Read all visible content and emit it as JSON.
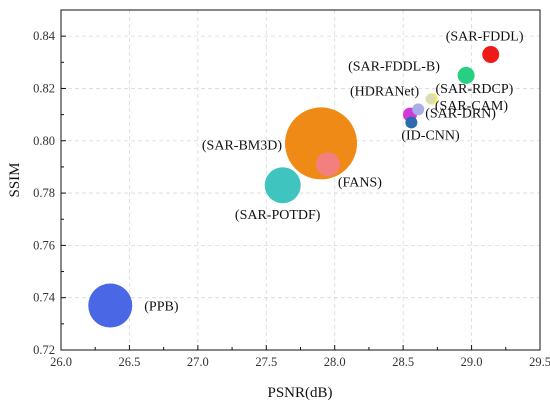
{
  "chart_data": {
    "type": "scatter",
    "xlabel": "PSNR(dB)",
    "ylabel": "SSIM",
    "xlim": [
      26.0,
      29.5
    ],
    "ylim": [
      0.72,
      0.85
    ],
    "x_ticks": [
      "26.0",
      "26.5",
      "27.0",
      "27.5",
      "28.0",
      "28.5",
      "29.0",
      "29.5"
    ],
    "y_ticks": [
      "0.72",
      "0.74",
      "0.76",
      "0.78",
      "0.80",
      "0.82",
      "0.84"
    ],
    "grid": true,
    "points": [
      {
        "label": "(PPB)",
        "x": 26.36,
        "y": 0.737,
        "size": 44,
        "color": "#4a68e6"
      },
      {
        "label": "(SAR-POTDF)",
        "x": 27.62,
        "y": 0.783,
        "size": 36,
        "color": "#3fc4bf"
      },
      {
        "label": "(SAR-BM3D)",
        "x": 27.9,
        "y": 0.799,
        "size": 72,
        "color": "#f08a17"
      },
      {
        "label": "(FANS)",
        "x": 27.95,
        "y": 0.791,
        "size": 24,
        "color": "#f47f7f"
      },
      {
        "label": "(ID-CNN)",
        "x": 28.56,
        "y": 0.807,
        "size": 12,
        "color": "#2b6cb0"
      },
      {
        "label": "(HDRANet)",
        "x": 28.55,
        "y": 0.81,
        "size": 14,
        "color": "#d43bd4"
      },
      {
        "label": "(SAR-DRN)",
        "x": 28.61,
        "y": 0.812,
        "size": 12,
        "color": "#a9aee8"
      },
      {
        "label": "(SAR-CAM)",
        "x": 28.71,
        "y": 0.816,
        "size": 12,
        "color": "#f5ec70"
      },
      {
        "label": "(SAR-RDCP)",
        "x": 28.7,
        "y": 0.816,
        "size": 10,
        "color": "#dcdcb8"
      },
      {
        "label": "(SAR-FDDL-B)",
        "x": 28.96,
        "y": 0.825,
        "size": 17,
        "color": "#27cf82"
      },
      {
        "label": "(SAR-FDDL)",
        "x": 29.14,
        "y": 0.833,
        "size": 17,
        "color": "#ee1a1a"
      }
    ]
  }
}
